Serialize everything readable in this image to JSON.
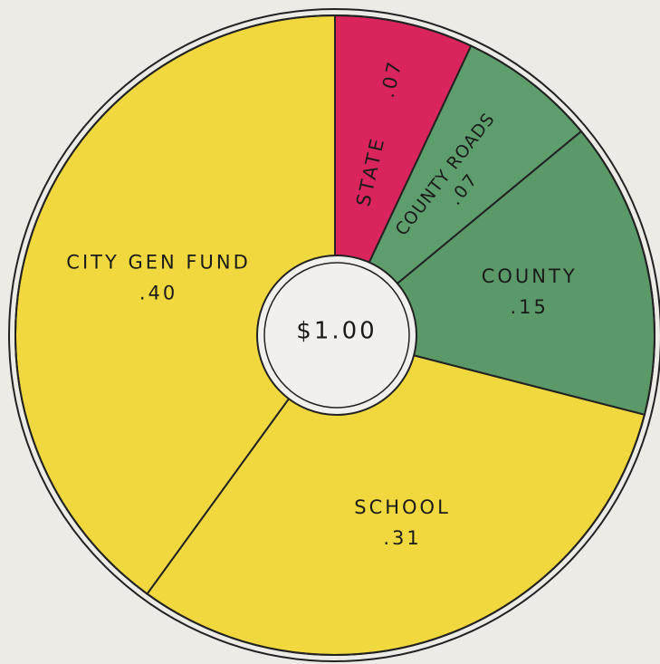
{
  "chart_data": {
    "type": "pie",
    "categories": [
      "STATE",
      "COUNTY ROADS",
      "COUNTY",
      "SCHOOL",
      "CITY GEN FUND"
    ],
    "values": [
      0.07,
      0.07,
      0.15,
      0.31,
      0.4
    ],
    "value_labels": [
      ".07",
      ".07",
      ".15",
      ".31",
      ".40"
    ],
    "colors": [
      "#d9245c",
      "#5e9e6c",
      "#5b9a68",
      "#f0d83e",
      "#f0d83e"
    ],
    "center_label": "$1.00"
  }
}
